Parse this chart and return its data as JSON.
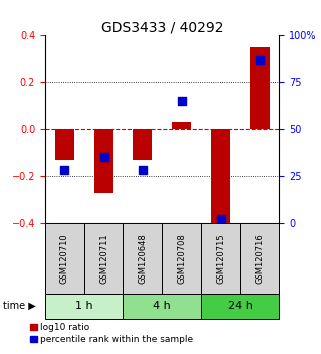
{
  "title": "GDS3433 / 40292",
  "samples": [
    "GSM120710",
    "GSM120711",
    "GSM120648",
    "GSM120708",
    "GSM120715",
    "GSM120716"
  ],
  "log10_ratio": [
    -0.13,
    -0.27,
    -0.13,
    0.03,
    -0.41,
    0.35
  ],
  "percentile_rank": [
    28,
    35,
    28,
    65,
    2,
    87
  ],
  "time_groups": [
    {
      "label": "1 h",
      "start": 0,
      "end": 2,
      "color": "#c8f0c8"
    },
    {
      "label": "4 h",
      "start": 2,
      "end": 4,
      "color": "#90e090"
    },
    {
      "label": "24 h",
      "start": 4,
      "end": 6,
      "color": "#44cc44"
    }
  ],
  "ylim_left": [
    -0.4,
    0.4
  ],
  "ylim_right": [
    0,
    100
  ],
  "yticks_left": [
    -0.4,
    -0.2,
    0,
    0.2,
    0.4
  ],
  "yticks_right": [
    0,
    25,
    50,
    75,
    100
  ],
  "bar_color": "#bb0000",
  "square_color": "#0000cc",
  "bar_width": 0.5,
  "square_size": 30,
  "zero_line_color": "#cc0000",
  "bg_color": "#ffffff",
  "title_fontsize": 10,
  "tick_fontsize": 7,
  "sample_fontsize": 6,
  "time_fontsize": 8
}
